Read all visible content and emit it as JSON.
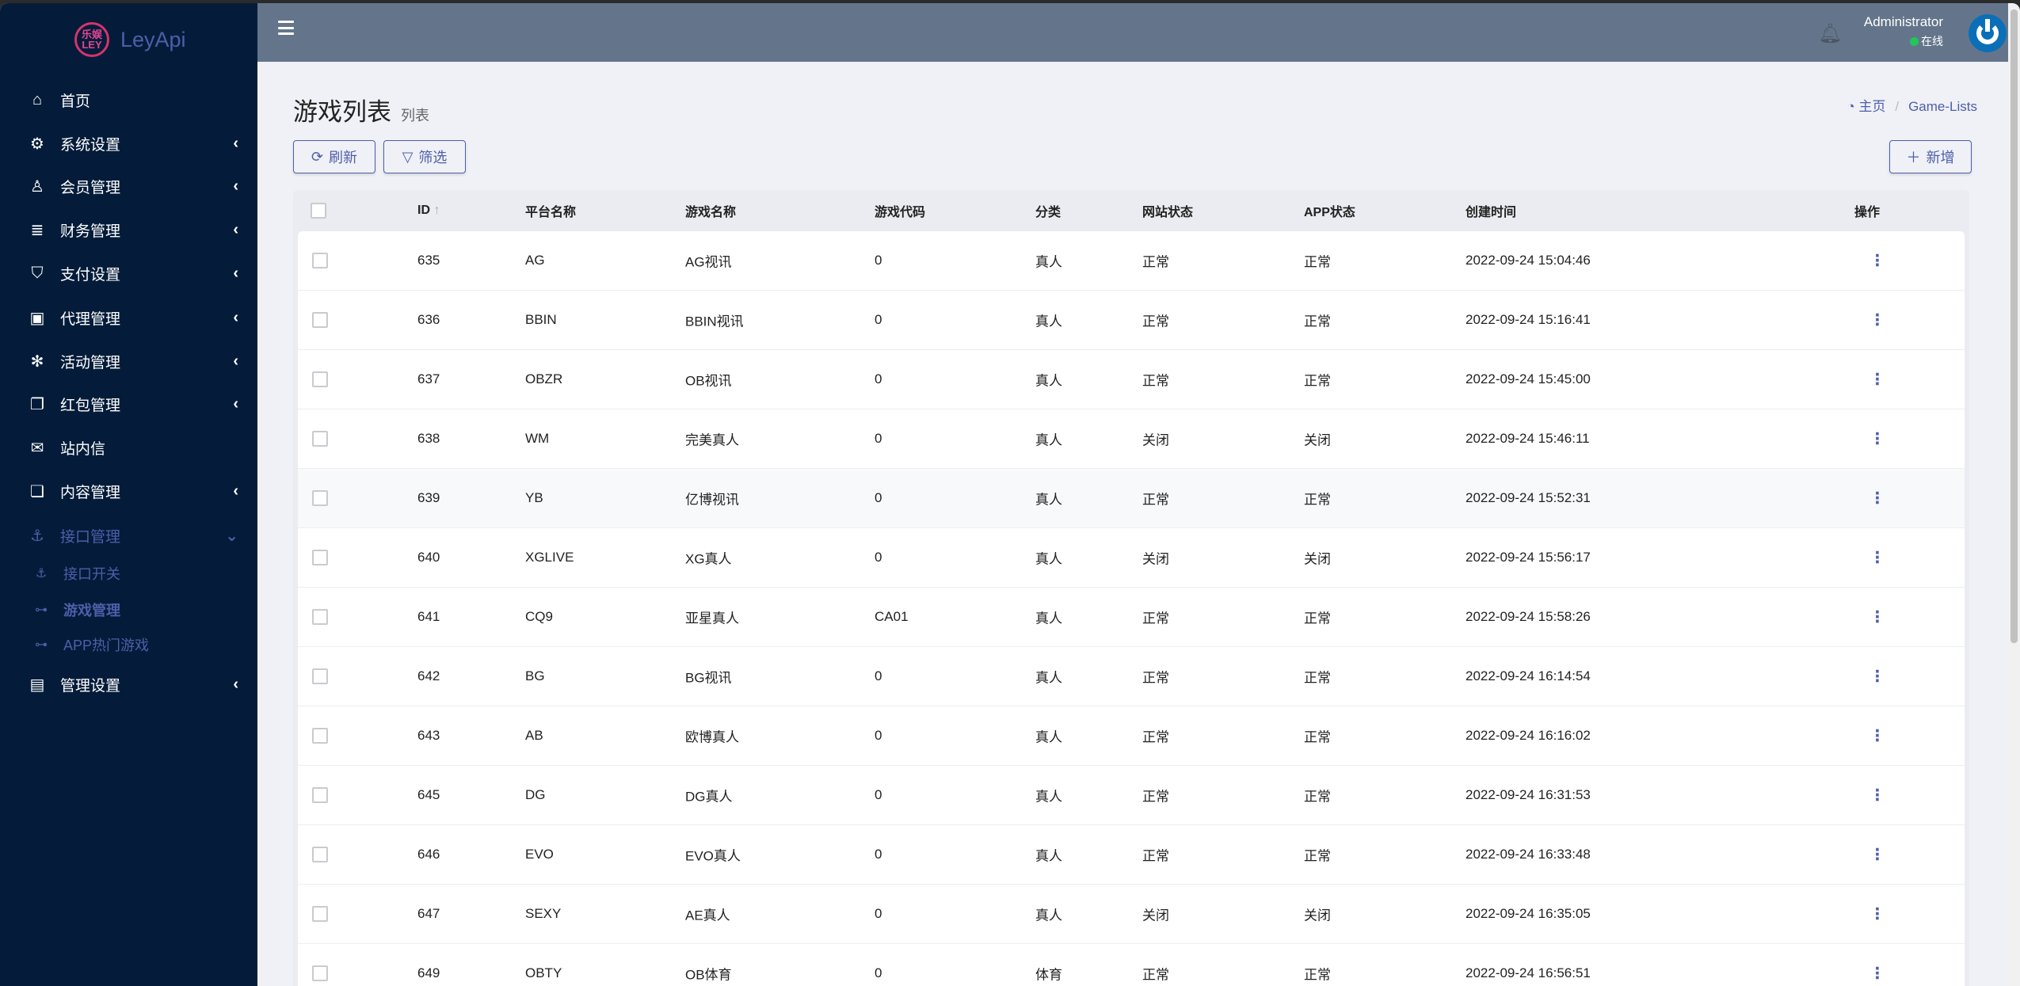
{
  "app": {
    "logo_badge_top": "乐娱",
    "logo_badge_bottom": "LEY",
    "logo_text": "LeyApi"
  },
  "sidebar": {
    "items": [
      {
        "label": "首页",
        "icon": "home-icon",
        "glyph": "⌂",
        "chevron": false
      },
      {
        "label": "系统设置",
        "icon": "gears-icon",
        "glyph": "⚙",
        "chevron": true
      },
      {
        "label": "会员管理",
        "icon": "user-icon",
        "glyph": "♙",
        "chevron": true
      },
      {
        "label": "财务管理",
        "icon": "database-icon",
        "glyph": "≣",
        "chevron": true
      },
      {
        "label": "支付设置",
        "icon": "bookmark-icon",
        "glyph": "⛉",
        "chevron": true
      },
      {
        "label": "代理管理",
        "icon": "address-book-icon",
        "glyph": "▣",
        "chevron": true
      },
      {
        "label": "活动管理",
        "icon": "yelp-icon",
        "glyph": "✻",
        "chevron": true
      },
      {
        "label": "红包管理",
        "icon": "clone-icon",
        "glyph": "❐",
        "chevron": true
      },
      {
        "label": "站内信",
        "icon": "envelope-icon",
        "glyph": "✉",
        "chevron": false
      },
      {
        "label": "内容管理",
        "icon": "copy-icon",
        "glyph": "❏",
        "chevron": true
      },
      {
        "label": "接口管理",
        "icon": "anchor-icon",
        "glyph": "⚓",
        "chevron": true,
        "active": true
      }
    ],
    "subitems": [
      {
        "label": "接口开关",
        "icon": "anchor-icon",
        "glyph": "⚓"
      },
      {
        "label": "游戏管理",
        "icon": "gamepad-icon",
        "glyph": "⊶",
        "current": true
      },
      {
        "label": "APP热门游戏",
        "icon": "gamepad-icon",
        "glyph": "⊶"
      }
    ],
    "last": {
      "label": "管理设置",
      "icon": "id-card-icon",
      "glyph": "▤"
    }
  },
  "header": {
    "user_name": "Administrator",
    "status": "在线",
    "status_color": "#22c55e",
    "avatar_color": "#0b6fb8"
  },
  "page": {
    "title": "游戏列表",
    "subtitle": "列表",
    "breadcrumb_home": "主页",
    "breadcrumb_current": "Game-Lists"
  },
  "toolbar": {
    "refresh": "刷新",
    "filter": "筛选",
    "add": "新增"
  },
  "table": {
    "columns": [
      "ID",
      "平台名称",
      "游戏名称",
      "游戏代码",
      "分类",
      "网站状态",
      "APP状态",
      "创建时间",
      "操作"
    ],
    "sort_icon": "↑",
    "rows": [
      [
        "635",
        "AG",
        "AG视讯",
        "0",
        "真人",
        "正常",
        "正常",
        "2022-09-24 15:04:46"
      ],
      [
        "636",
        "BBIN",
        "BBIN视讯",
        "0",
        "真人",
        "正常",
        "正常",
        "2022-09-24 15:16:41"
      ],
      [
        "637",
        "OBZR",
        "OB视讯",
        "0",
        "真人",
        "正常",
        "正常",
        "2022-09-24 15:45:00"
      ],
      [
        "638",
        "WM",
        "完美真人",
        "0",
        "真人",
        "关闭",
        "关闭",
        "2022-09-24 15:46:11"
      ],
      [
        "639",
        "YB",
        "亿博视讯",
        "0",
        "真人",
        "正常",
        "正常",
        "2022-09-24 15:52:31"
      ],
      [
        "640",
        "XGLIVE",
        "XG真人",
        "0",
        "真人",
        "关闭",
        "关闭",
        "2022-09-24 15:56:17"
      ],
      [
        "641",
        "CQ9",
        "亚星真人",
        "CA01",
        "真人",
        "正常",
        "正常",
        "2022-09-24 15:58:26"
      ],
      [
        "642",
        "BG",
        "BG视讯",
        "0",
        "真人",
        "正常",
        "正常",
        "2022-09-24 16:14:54"
      ],
      [
        "643",
        "AB",
        "欧博真人",
        "0",
        "真人",
        "正常",
        "正常",
        "2022-09-24 16:16:02"
      ],
      [
        "645",
        "DG",
        "DG真人",
        "0",
        "真人",
        "正常",
        "正常",
        "2022-09-24 16:31:53"
      ],
      [
        "646",
        "EVO",
        "EVO真人",
        "0",
        "真人",
        "正常",
        "正常",
        "2022-09-24 16:33:48"
      ],
      [
        "647",
        "SEXY",
        "AE真人",
        "0",
        "真人",
        "关闭",
        "关闭",
        "2022-09-24 16:35:05"
      ],
      [
        "649",
        "OBTY",
        "OB体育",
        "0",
        "体育",
        "正常",
        "正常",
        "2022-09-24 16:56:51"
      ]
    ]
  }
}
